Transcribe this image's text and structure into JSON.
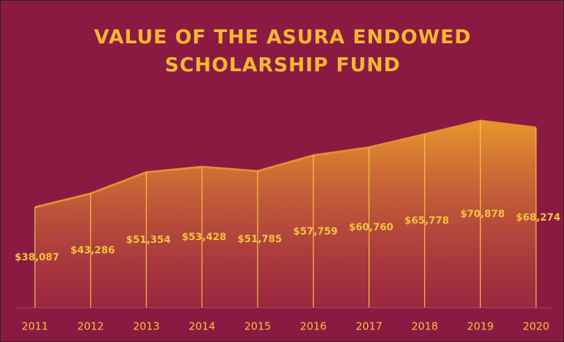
{
  "chart_data": {
    "type": "area",
    "title": "VALUE OF THE ASURA ENDOWED SCHOLARSHIP FUND",
    "categories": [
      "2011",
      "2012",
      "2013",
      "2014",
      "2015",
      "2016",
      "2017",
      "2018",
      "2019",
      "2020"
    ],
    "values": [
      38087,
      43286,
      51354,
      53428,
      51785,
      57759,
      60760,
      65778,
      70878,
      68274
    ],
    "value_labels": [
      "$38,087",
      "$43,286",
      "$51,354",
      "$53,428",
      "$51,785",
      "$57,759",
      "$60,760",
      "$65,778",
      "$70,878",
      "$68,274"
    ],
    "color": "#e3902f",
    "ylim": [
      0,
      80000
    ]
  }
}
